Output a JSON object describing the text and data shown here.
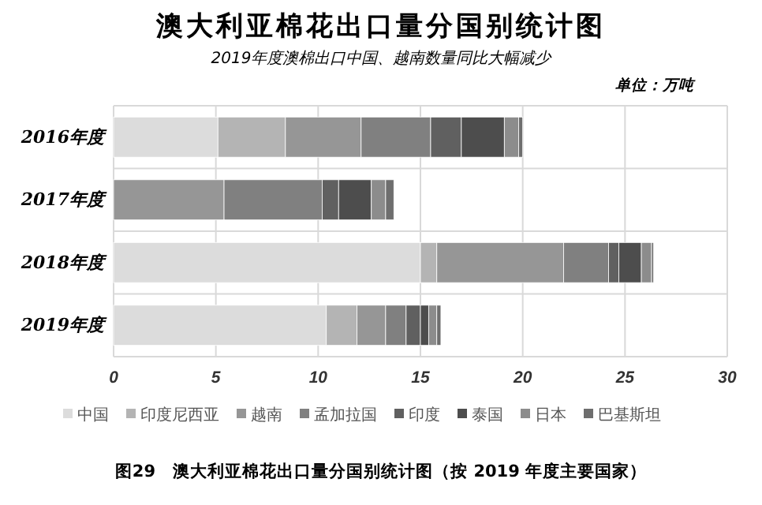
{
  "chart_data": {
    "type": "bar",
    "orientation": "horizontal",
    "stacked": true,
    "title": "澳大利亚棉花出口量分国别统计图",
    "subtitle": "2019年度澳棉出口中国、越南数量同比大幅减少",
    "annotations": [
      "单位：万吨",
      "图29　澳大利亚棉花出口量分国别统计图（按 2019 年度主要国家）"
    ],
    "categories": [
      "2016年度",
      "2017年度",
      "2018年度",
      "2019年度"
    ],
    "series": [
      {
        "name": "中国",
        "color": "#dcdcdc",
        "values": [
          5.1,
          0,
          15.0,
          10.4
        ]
      },
      {
        "name": "印度尼西亚",
        "color": "#b4b4b4",
        "values": [
          3.3,
          0,
          0.8,
          1.5
        ]
      },
      {
        "name": "越南",
        "color": "#969696",
        "values": [
          3.7,
          5.4,
          6.2,
          1.4
        ]
      },
      {
        "name": "孟加拉国",
        "color": "#808080",
        "values": [
          3.4,
          4.8,
          2.2,
          1.0
        ]
      },
      {
        "name": "印度",
        "color": "#606060",
        "values": [
          1.5,
          0.8,
          0.5,
          0.7
        ]
      },
      {
        "name": "泰国",
        "color": "#4d4d4d",
        "values": [
          2.1,
          1.6,
          1.1,
          0.4
        ]
      },
      {
        "name": "日本",
        "color": "#8c8c8c",
        "values": [
          0.7,
          0.7,
          0.5,
          0.4
        ]
      },
      {
        "name": "巴基斯坦",
        "color": "#6e6e6e",
        "values": [
          0.2,
          0.4,
          0.1,
          0.2
        ]
      }
    ],
    "xlim": [
      0,
      30
    ],
    "xticks": [
      0,
      5,
      10,
      15,
      20,
      25,
      30
    ],
    "grid": "x",
    "legend": "bottom"
  }
}
